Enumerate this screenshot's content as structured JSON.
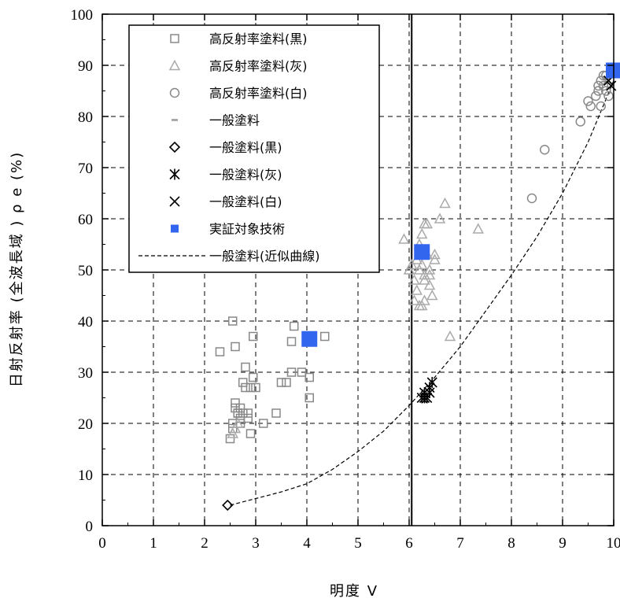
{
  "chart_data": {
    "type": "scatter",
    "xlabel": "明度 V",
    "ylabel": "日射反射率 (全波長域 ) ρ e (%)",
    "xlim": [
      0,
      10
    ],
    "ylim": [
      0,
      100
    ],
    "x_ticks": [
      "0",
      "1",
      "2",
      "3",
      "4",
      "5",
      "6",
      "7",
      "8",
      "9",
      "10"
    ],
    "y_ticks": [
      "0",
      "10",
      "20",
      "30",
      "40",
      "50",
      "60",
      "70",
      "80",
      "90",
      "100"
    ],
    "grid": true,
    "legend_position": "top-left",
    "vertical_reference_line_x": 6.05,
    "series": [
      {
        "name": "高反射率塗料(黒)",
        "marker": "square",
        "color": "#888888",
        "x": [
          2.5,
          2.55,
          2.3,
          2.6,
          2.55,
          2.65,
          2.7,
          2.75,
          2.8,
          2.6,
          2.7,
          2.95,
          2.95,
          2.8,
          2.85,
          2.9,
          3.0,
          3.15,
          3.4,
          3.5,
          3.6,
          3.7,
          3.7,
          3.75,
          3.9,
          4.05,
          4.05,
          4.35,
          2.6,
          2.55,
          2.65,
          2.7,
          2.75,
          2.85,
          2.9
        ],
        "y": [
          17,
          19,
          34,
          35,
          40,
          22,
          23,
          28,
          31,
          24,
          20,
          37,
          29,
          27,
          22,
          18,
          27,
          20,
          22,
          28,
          28,
          36,
          30,
          39,
          30,
          29,
          25,
          37,
          23,
          20,
          22,
          21,
          22,
          21,
          27
        ]
      },
      {
        "name": "高反射率塗料(灰)",
        "marker": "triangle",
        "color": "#aaaaaa",
        "x": [
          2.55,
          2.6,
          2.65,
          5.9,
          6.0,
          6.1,
          6.15,
          6.2,
          6.25,
          6.3,
          6.35,
          6.4,
          6.45,
          6.5,
          6.2,
          6.3,
          6.4,
          6.15,
          6.25,
          6.35,
          6.1,
          6.3,
          6.5,
          6.7,
          6.6,
          6.8,
          7.35,
          6.05,
          6.2,
          6.4,
          6.3,
          6.25
        ],
        "y": [
          18,
          19,
          20,
          56,
          50,
          48,
          52,
          55,
          51,
          49,
          53,
          50,
          45,
          53,
          43,
          44,
          47,
          46,
          57,
          59,
          44,
          48,
          52,
          63,
          60,
          37,
          58,
          51,
          50,
          49,
          59,
          43
        ]
      },
      {
        "name": "高反射率塗料(白)",
        "marker": "circle",
        "color": "#888888",
        "x": [
          8.4,
          8.65,
          9.35,
          9.5,
          9.55,
          9.65,
          9.7,
          9.75,
          9.8,
          9.85,
          9.9,
          9.75,
          9.8,
          9.7,
          9.85
        ],
        "y": [
          64,
          73.5,
          79,
          83,
          82,
          84,
          86,
          87,
          88,
          85,
          84,
          82,
          86,
          85,
          88
        ]
      },
      {
        "name": "一般塗料",
        "marker": "dash",
        "color": "#aaaaaa",
        "x": [],
        "y": []
      },
      {
        "name": "一般塗料(黒)",
        "marker": "diamond",
        "color": "#000000",
        "x": [
          2.45
        ],
        "y": [
          4
        ]
      },
      {
        "name": "一般塗料(灰)",
        "marker": "asterisk",
        "color": "#000000",
        "x": [
          6.25,
          6.3,
          6.35,
          6.4,
          6.45,
          6.3,
          6.4
        ],
        "y": [
          25,
          26,
          25,
          27,
          28,
          25,
          26
        ]
      },
      {
        "name": "一般塗料(白)",
        "marker": "x",
        "color": "#000000",
        "x": [
          9.95,
          9.9
        ],
        "y": [
          86,
          87
        ]
      },
      {
        "name": "実証対象技術",
        "marker": "filled-square",
        "color": "#3366ee",
        "x": [
          4.05,
          6.25,
          10.0
        ],
        "y": [
          36.5,
          53.5,
          89
        ]
      },
      {
        "name": "一般塗料(近似曲線)",
        "marker": "dashed-line",
        "color": "#000000",
        "x": [
          2.5,
          3.0,
          3.5,
          4.0,
          4.5,
          5.0,
          5.5,
          6.0,
          6.5,
          7.0,
          7.5,
          8.0,
          8.5,
          9.0,
          9.5,
          10.0
        ],
        "y": [
          4,
          5.3,
          6.6,
          8.2,
          11,
          14.5,
          18.5,
          23.5,
          29,
          35,
          42,
          49,
          56.5,
          65,
          75,
          87
        ]
      }
    ]
  }
}
